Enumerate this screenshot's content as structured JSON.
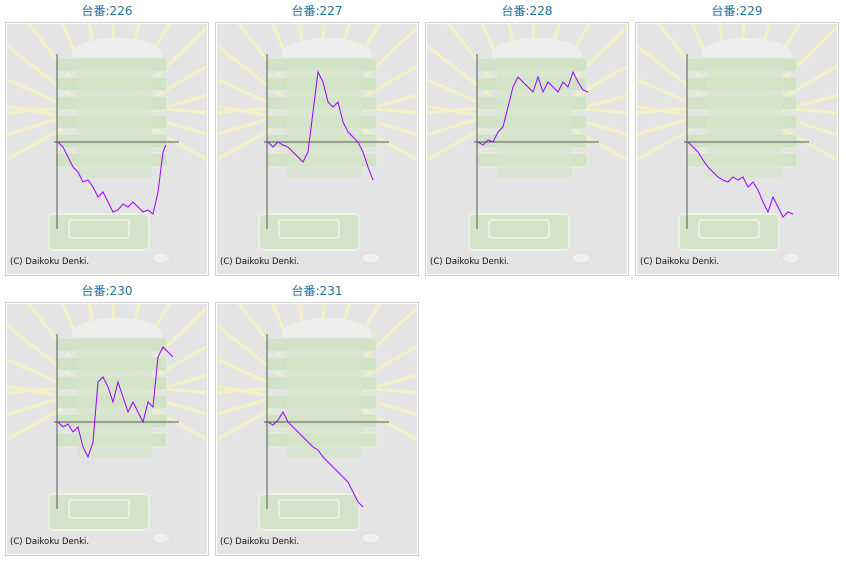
{
  "title_prefix": "台番:",
  "copyright": "(C) Daikoku Denki.",
  "colors": {
    "line": "#9900ff",
    "axis": "#555555",
    "background": "#e4e4e4",
    "title": "#1f6e9c"
  },
  "chart_data": [
    {
      "type": "line",
      "machine": "226",
      "label": "台番:226",
      "x": [
        0,
        5,
        10,
        15,
        20,
        25,
        30,
        35,
        40,
        45,
        50,
        55,
        60,
        65,
        70,
        75,
        80,
        85,
        90,
        95,
        100,
        105,
        108
      ],
      "y": [
        0,
        -5,
        -15,
        -25,
        -30,
        -40,
        -38,
        -45,
        -55,
        -50,
        -60,
        -70,
        -68,
        -62,
        -65,
        -60,
        -65,
        -70,
        -68,
        -72,
        -50,
        -10,
        -3
      ]
    },
    {
      "type": "line",
      "machine": "227",
      "label": "台番:227",
      "x": [
        0,
        5,
        10,
        15,
        20,
        25,
        30,
        35,
        40,
        45,
        50,
        55,
        60,
        65,
        70,
        75,
        80,
        85,
        90,
        95,
        100,
        105
      ],
      "y": [
        0,
        -5,
        0,
        -3,
        -5,
        -10,
        -15,
        -20,
        -10,
        30,
        70,
        60,
        40,
        35,
        40,
        20,
        10,
        5,
        0,
        -10,
        -25,
        -38
      ]
    },
    {
      "type": "line",
      "machine": "228",
      "label": "台番:228",
      "x": [
        0,
        5,
        10,
        15,
        20,
        25,
        30,
        35,
        40,
        45,
        50,
        55,
        60,
        65,
        70,
        75,
        80,
        85,
        90,
        95,
        100,
        105,
        110
      ],
      "y": [
        0,
        -3,
        2,
        0,
        10,
        15,
        35,
        55,
        65,
        60,
        55,
        50,
        65,
        50,
        60,
        55,
        50,
        60,
        55,
        70,
        60,
        52,
        50
      ]
    },
    {
      "type": "line",
      "machine": "229",
      "label": "台番:229",
      "x": [
        0,
        5,
        10,
        15,
        20,
        25,
        30,
        35,
        40,
        45,
        50,
        55,
        60,
        65,
        70,
        75,
        80,
        85,
        90,
        95,
        100,
        105
      ],
      "y": [
        0,
        -5,
        -10,
        -18,
        -25,
        -30,
        -35,
        -38,
        -40,
        -35,
        -38,
        -35,
        -45,
        -40,
        -48,
        -60,
        -70,
        -55,
        -65,
        -75,
        -70,
        -72
      ]
    },
    {
      "type": "line",
      "machine": "230",
      "label": "台番:230",
      "x": [
        0,
        5,
        10,
        15,
        20,
        25,
        30,
        35,
        40,
        45,
        50,
        55,
        60,
        65,
        70,
        75,
        80,
        85,
        90,
        95,
        100,
        105,
        110,
        115
      ],
      "y": [
        0,
        -5,
        -2,
        -10,
        -5,
        -25,
        -35,
        -20,
        40,
        45,
        35,
        20,
        40,
        25,
        10,
        20,
        10,
        0,
        20,
        15,
        65,
        75,
        70,
        65
      ]
    },
    {
      "type": "line",
      "machine": "231",
      "label": "台番:231",
      "x": [
        0,
        5,
        10,
        15,
        20,
        25,
        30,
        35,
        40,
        45,
        50,
        55,
        60,
        65,
        70,
        75,
        80,
        85,
        90,
        95
      ],
      "y": [
        0,
        -3,
        2,
        10,
        0,
        -5,
        -10,
        -15,
        -20,
        -25,
        -28,
        -35,
        -40,
        -45,
        -50,
        -55,
        -60,
        -70,
        -80,
        -85
      ]
    }
  ]
}
